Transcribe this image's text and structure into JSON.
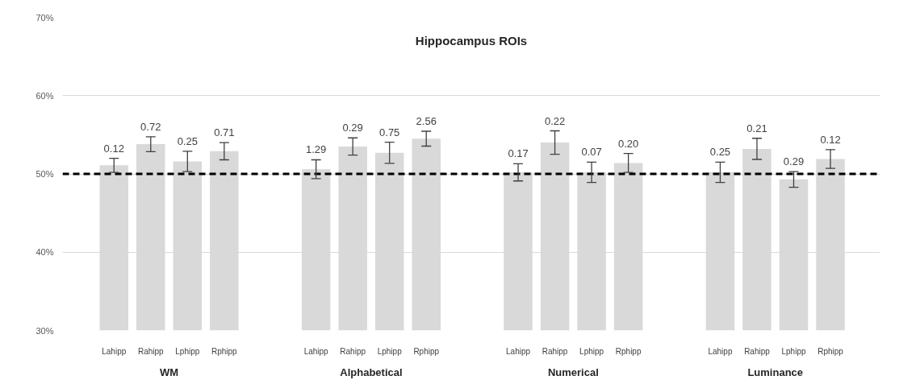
{
  "chart_data": {
    "type": "bar",
    "title": "Hippocampus ROIs",
    "categories": [
      "Lahipp",
      "Rahipp",
      "Lphipp",
      "Rphipp",
      null,
      "Lahipp",
      "Rahipp",
      "Lphipp",
      "Rphipp",
      null,
      "Lahipp",
      "Rahipp",
      "Lphipp",
      "Rphipp",
      null,
      "Lahipp",
      "Rahipp",
      "Lphipp",
      "Rphipp"
    ],
    "values": [
      51.1,
      53.8,
      51.6,
      52.9,
      null,
      50.6,
      53.5,
      52.7,
      54.5,
      null,
      50.2,
      54.0,
      50.2,
      51.4,
      null,
      50.2,
      53.2,
      49.3,
      51.9
    ],
    "errors": [
      0.9,
      0.95,
      1.3,
      1.1,
      null,
      1.2,
      1.1,
      1.35,
      0.95,
      null,
      1.1,
      1.5,
      1.3,
      1.2,
      null,
      1.3,
      1.35,
      1.0,
      1.2
    ],
    "color": "#d9d9d9",
    "annotations": [
      "WM",
      "Alphabetical",
      "Numerical",
      "Luminance",
      "0.12",
      "0.72",
      "0.25",
      "0.71",
      "1.29",
      "0.29",
      "0.75",
      "2.56",
      "0.17",
      "0.22",
      "0.07",
      "0.20",
      "0.25",
      "0.21",
      "0.29",
      "0.12"
    ],
    "ylim": [
      30,
      70
    ],
    "yticks": [
      {
        "value": 30,
        "label": "30%"
      },
      {
        "value": 40,
        "label": "40%"
      },
      {
        "value": 50,
        "label": "50%"
      },
      {
        "value": 60,
        "label": "60%"
      },
      {
        "value": 70,
        "label": "70%"
      }
    ],
    "ref_lines": [
      {
        "axis": "y",
        "value": 50,
        "label": null,
        "color": "#000000",
        "line_style": "dashed"
      }
    ],
    "grid": "y"
  }
}
